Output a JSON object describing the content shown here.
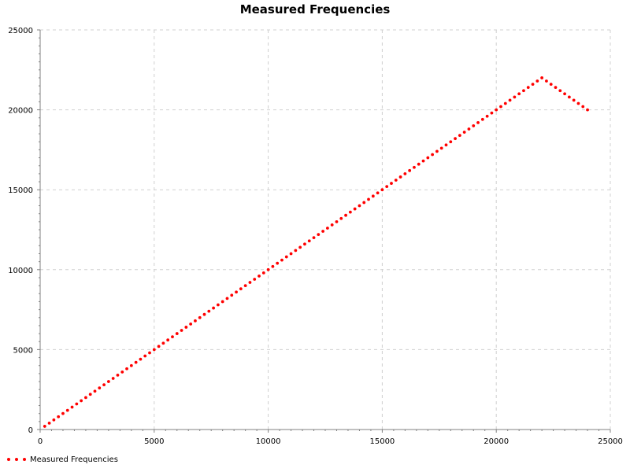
{
  "chart_data": {
    "type": "scatter",
    "title": "Measured Frequencies",
    "xlabel": "",
    "ylabel": "",
    "xlim": [
      0,
      25000
    ],
    "ylim": [
      0,
      25000
    ],
    "x_ticks": [
      "0",
      "5000",
      "10000",
      "15000",
      "20000",
      "25000"
    ],
    "y_ticks": [
      "0",
      "5000",
      "10000",
      "15000",
      "20000",
      "25000"
    ],
    "grid": true,
    "legend_position": "bottom-left",
    "series": [
      {
        "name": "Measured Frequencies",
        "color": "#ff0000",
        "marker": "dot",
        "segments": [
          {
            "x_start": 200,
            "x_end": 22000,
            "x_step": 200,
            "y_equals_x": true
          },
          {
            "x_start": 22200,
            "x_end": 24000,
            "x_step": 200,
            "y_start": 21800,
            "y_step": -200
          }
        ]
      }
    ]
  }
}
